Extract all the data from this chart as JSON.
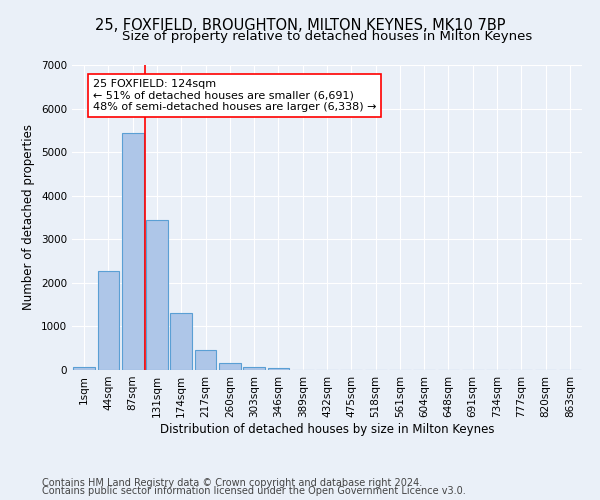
{
  "title": "25, FOXFIELD, BROUGHTON, MILTON KEYNES, MK10 7BP",
  "subtitle": "Size of property relative to detached houses in Milton Keynes",
  "xlabel": "Distribution of detached houses by size in Milton Keynes",
  "ylabel": "Number of detached properties",
  "footer_line1": "Contains HM Land Registry data © Crown copyright and database right 2024.",
  "footer_line2": "Contains public sector information licensed under the Open Government Licence v3.0.",
  "bar_labels": [
    "1sqm",
    "44sqm",
    "87sqm",
    "131sqm",
    "174sqm",
    "217sqm",
    "260sqm",
    "303sqm",
    "346sqm",
    "389sqm",
    "432sqm",
    "475sqm",
    "518sqm",
    "561sqm",
    "604sqm",
    "648sqm",
    "691sqm",
    "734sqm",
    "777sqm",
    "820sqm",
    "863sqm"
  ],
  "bar_values": [
    80,
    2270,
    5450,
    3450,
    1310,
    470,
    155,
    80,
    45,
    0,
    0,
    0,
    0,
    0,
    0,
    0,
    0,
    0,
    0,
    0,
    0
  ],
  "bar_color": "#aec6e8",
  "bar_edge_color": "#5a9fd4",
  "ylim": [
    0,
    7000
  ],
  "yticks": [
    0,
    1000,
    2000,
    3000,
    4000,
    5000,
    6000,
    7000
  ],
  "vline_position": 2.5,
  "vline_color": "red",
  "annotation_text": "25 FOXFIELD: 124sqm\n← 51% of detached houses are smaller (6,691)\n48% of semi-detached houses are larger (6,338) →",
  "annotation_box_color": "white",
  "annotation_border_color": "red",
  "bg_color": "#eaf0f8",
  "plot_bg_color": "#eaf0f8",
  "grid_color": "white",
  "title_fontsize": 10.5,
  "subtitle_fontsize": 9.5,
  "label_fontsize": 8.5,
  "tick_fontsize": 7.5,
  "footer_fontsize": 7,
  "annot_fontsize": 8
}
